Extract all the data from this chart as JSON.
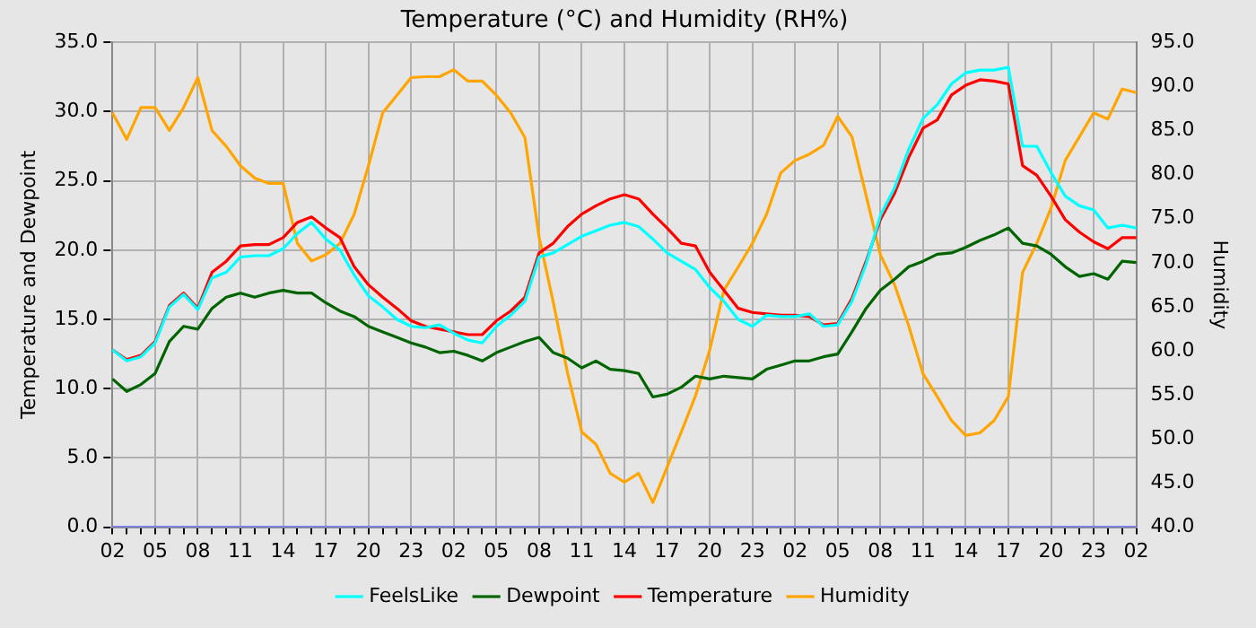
{
  "chart_data": {
    "type": "line",
    "title": "Temperature (°C) and Humidity (RH%)",
    "ylabel": "Temperature and Dewpoint",
    "y2label": "Humidity",
    "categories": [
      "02",
      null,
      null,
      "05",
      null,
      null,
      "08",
      null,
      null,
      "11",
      null,
      null,
      "14",
      null,
      null,
      "17",
      null,
      null,
      "20",
      null,
      null,
      "23",
      null,
      null,
      "02",
      null,
      null,
      "05",
      null,
      null,
      "08",
      null,
      null,
      "11",
      null,
      null,
      "14",
      null,
      null,
      "17",
      null,
      null,
      "20",
      null,
      null,
      "23",
      null,
      null,
      "02",
      null,
      null,
      "05",
      null,
      null,
      "08",
      null,
      null,
      "11",
      null,
      null,
      "14",
      null,
      null,
      "17",
      null,
      null,
      "20",
      null,
      null,
      "23",
      null,
      null,
      "02"
    ],
    "series": [
      {
        "name": "FeelsLike",
        "color": "#00ffff",
        "values": [
          12.8,
          12.0,
          12.3,
          13.3,
          15.9,
          16.8,
          15.7,
          18.0,
          18.4,
          19.5,
          19.6,
          19.6,
          20.1,
          21.2,
          22.0,
          20.8,
          20.0,
          18.2,
          16.7,
          15.9,
          15.0,
          14.5,
          14.4,
          14.6,
          14.0,
          13.5,
          13.3,
          14.5,
          15.3,
          16.3,
          19.5,
          19.8,
          20.4,
          21.0,
          21.4,
          21.8,
          22.0,
          21.7,
          20.8,
          19.8,
          19.2,
          18.6,
          17.3,
          16.3,
          15.0,
          14.5,
          15.3,
          15.2,
          15.2,
          15.4,
          14.5,
          14.6,
          16.3,
          19.0,
          22.5,
          24.5,
          27.3,
          29.5,
          30.5,
          32.0,
          32.8,
          33.0,
          33.0,
          33.2,
          27.5,
          27.5,
          25.6,
          23.9,
          23.2,
          22.9,
          21.6,
          21.8,
          21.6
        ]
      },
      {
        "name": "Dewpoint",
        "color": "#006400",
        "values": [
          10.7,
          9.8,
          10.3,
          11.1,
          13.4,
          14.5,
          14.3,
          15.8,
          16.6,
          16.9,
          16.6,
          16.9,
          17.1,
          16.9,
          16.9,
          16.2,
          15.6,
          15.2,
          14.5,
          14.1,
          13.7,
          13.3,
          13.0,
          12.6,
          12.7,
          12.4,
          12.0,
          12.6,
          13.0,
          13.4,
          13.7,
          12.6,
          12.2,
          11.5,
          12.0,
          11.4,
          11.3,
          11.1,
          9.4,
          9.6,
          10.1,
          10.9,
          10.7,
          10.9,
          10.8,
          10.7,
          11.4,
          11.7,
          12.0,
          12.0,
          12.3,
          12.5,
          14.1,
          15.8,
          17.1,
          17.9,
          18.8,
          19.2,
          19.7,
          19.8,
          20.2,
          20.7,
          21.1,
          21.6,
          20.5,
          20.3,
          19.7,
          18.8,
          18.1,
          18.3,
          17.9,
          19.2,
          19.1
        ]
      },
      {
        "name": "Temperature",
        "color": "#ff0000",
        "values": [
          12.8,
          12.1,
          12.4,
          13.4,
          16.0,
          16.9,
          15.8,
          18.4,
          19.2,
          20.3,
          20.4,
          20.4,
          20.9,
          22.0,
          22.4,
          21.6,
          20.9,
          18.8,
          17.5,
          16.6,
          15.8,
          14.9,
          14.5,
          14.3,
          14.1,
          13.9,
          13.9,
          14.9,
          15.6,
          16.6,
          19.8,
          20.5,
          21.7,
          22.6,
          23.2,
          23.7,
          24.0,
          23.7,
          22.6,
          21.6,
          20.5,
          20.3,
          18.4,
          17.1,
          15.8,
          15.5,
          15.4,
          15.3,
          15.3,
          15.2,
          14.6,
          14.7,
          16.5,
          19.2,
          22.2,
          24.1,
          26.7,
          28.8,
          29.4,
          31.2,
          31.9,
          32.3,
          32.2,
          32.0,
          26.1,
          25.4,
          23.9,
          22.2,
          21.3,
          20.6,
          20.1,
          20.9,
          20.9
        ]
      },
      {
        "name": "Humidity",
        "color": "#ffa500",
        "axis": "y2",
        "values": [
          87.0,
          84.0,
          87.6,
          87.6,
          85.0,
          87.6,
          91.0,
          85.0,
          83.2,
          81.0,
          79.6,
          79.0,
          79.0,
          72.2,
          70.2,
          70.9,
          72.2,
          75.5,
          81.0,
          87.0,
          89.0,
          91.0,
          91.1,
          91.1,
          91.9,
          90.6,
          90.6,
          89.0,
          87.0,
          84.2,
          72.9,
          65.5,
          57.5,
          50.8,
          49.4,
          46.1,
          45.1,
          46.1,
          42.8,
          46.8,
          50.8,
          54.9,
          60.1,
          66.9,
          69.5,
          72.2,
          75.5,
          80.2,
          81.6,
          82.3,
          83.3,
          86.6,
          84.3,
          77.6,
          70.9,
          67.5,
          62.8,
          57.4,
          54.8,
          52.1,
          50.4,
          50.7,
          52.1,
          54.8,
          68.9,
          72.2,
          76.2,
          81.6,
          84.3,
          87.0,
          86.3,
          89.7,
          89.3
        ]
      },
      {
        "color": "#8080ff",
        "values": [
          0,
          0,
          0,
          0,
          0,
          0,
          0,
          0,
          0,
          0,
          0,
          0,
          0,
          0,
          0,
          0,
          0,
          0,
          0,
          0,
          0,
          0,
          0,
          0,
          0,
          0,
          0,
          0,
          0,
          0,
          0,
          0,
          0,
          0,
          0,
          0,
          0,
          0,
          0,
          0,
          0,
          0,
          0,
          0,
          0,
          0,
          0,
          0,
          0,
          0,
          0,
          0,
          0,
          0,
          0,
          0,
          0,
          0,
          0,
          0,
          0,
          0,
          0,
          0,
          0,
          0,
          0,
          0,
          0,
          0,
          0,
          0,
          0
        ]
      }
    ],
    "ylim": [
      0,
      35
    ],
    "yticks": [
      {
        "value": 0,
        "label": "0.0"
      },
      {
        "value": 5,
        "label": "5.0"
      },
      {
        "value": 10,
        "label": "10.0"
      },
      {
        "value": 15,
        "label": "15.0"
      },
      {
        "value": 20,
        "label": "20.0"
      },
      {
        "value": 25,
        "label": "25.0"
      },
      {
        "value": 30,
        "label": "30.0"
      },
      {
        "value": 35,
        "label": "35.0"
      }
    ],
    "y2lim": [
      40,
      95
    ],
    "y2ticks": [
      {
        "value": 40,
        "label": "40.0"
      },
      {
        "value": 45,
        "label": "45.0"
      },
      {
        "value": 50,
        "label": "50.0"
      },
      {
        "value": 55,
        "label": "55.0"
      },
      {
        "value": 60,
        "label": "60.0"
      },
      {
        "value": 65,
        "label": "65.0"
      },
      {
        "value": 70,
        "label": "70.0"
      },
      {
        "value": 75,
        "label": "75.0"
      },
      {
        "value": 80,
        "label": "80.0"
      },
      {
        "value": 85,
        "label": "85.0"
      },
      {
        "value": 90,
        "label": "90.0"
      },
      {
        "value": 95,
        "label": "95.0"
      }
    ],
    "grid": true,
    "legend": "bottom",
    "marker": "none"
  }
}
